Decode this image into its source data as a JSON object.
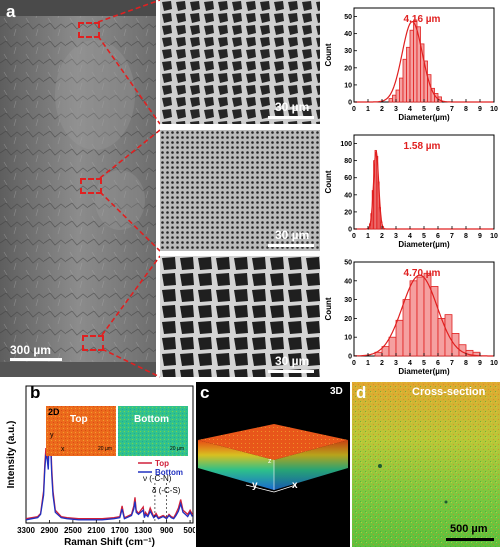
{
  "panels": {
    "a": {
      "letter": "a",
      "overview_scale": "300 µm",
      "zoom_scales": [
        "30 µm",
        "30 µm",
        "30 µm"
      ]
    },
    "b": {
      "letter": "b",
      "inset_2d_label": "2D",
      "inset_top_label": "Top",
      "inset_bottom_label": "Bottom",
      "inset_scale": "20 µm",
      "inset_axis_y": "y",
      "inset_axis_x": "x",
      "annotation_cn": "ν (-C-N)",
      "annotation_cs": "δ (-C-S)"
    },
    "c": {
      "letter": "c",
      "label_3d": "3D",
      "axis_y": "y",
      "axis_x": "x",
      "axis_z": "z"
    },
    "d": {
      "letter": "d",
      "title": "Cross-section",
      "scale": "500 µm"
    }
  },
  "chart_data": [
    {
      "type": "bar",
      "title": "4.16 µm",
      "xlabel": "Diameter(µm)",
      "ylabel": "Count",
      "xlim": [
        0,
        10
      ],
      "ylim": [
        0,
        55
      ],
      "x_ticks": [
        "0",
        "1",
        "2",
        "3",
        "4",
        "5",
        "6",
        "7",
        "8",
        "9",
        "10"
      ],
      "y_ticks": [
        "0",
        "10",
        "20",
        "30",
        "40",
        "50"
      ],
      "bin_width": 0.25,
      "bins": [
        2.5,
        2.75,
        3.0,
        3.25,
        3.5,
        3.75,
        4.0,
        4.25,
        4.5,
        4.75,
        5.0,
        5.25,
        5.5,
        5.75,
        6.0
      ],
      "values": [
        2,
        4,
        7,
        14,
        25,
        32,
        42,
        48,
        44,
        34,
        24,
        16,
        8,
        5,
        3
      ],
      "fit_mean": 4.16,
      "fit_sigma": 0.72,
      "fit_peak": 47,
      "color": "#e02020"
    },
    {
      "type": "bar",
      "title": "1.58 µm",
      "xlabel": "Diameter(µm)",
      "ylabel": "Count",
      "xlim": [
        0,
        10
      ],
      "ylim": [
        0,
        110
      ],
      "x_ticks": [
        "0",
        "1",
        "2",
        "3",
        "4",
        "5",
        "6",
        "7",
        "8",
        "9",
        "10"
      ],
      "y_ticks": [
        "0",
        "20",
        "40",
        "60",
        "80",
        "100"
      ],
      "bin_width": 0.1,
      "bins": [
        1.1,
        1.2,
        1.3,
        1.4,
        1.5,
        1.6,
        1.7,
        1.8,
        1.9,
        2.0
      ],
      "values": [
        6,
        18,
        45,
        80,
        92,
        85,
        55,
        25,
        8,
        3
      ],
      "fit_mean": 1.58,
      "fit_sigma": 0.18,
      "fit_peak": 91,
      "color": "#e02020"
    },
    {
      "type": "bar",
      "title": "4.70 µm",
      "xlabel": "Diameter(µm)",
      "ylabel": "Count",
      "xlim": [
        0,
        10
      ],
      "ylim": [
        0,
        50
      ],
      "x_ticks": [
        "0",
        "1",
        "2",
        "3",
        "4",
        "5",
        "6",
        "7",
        "8",
        "9",
        "10"
      ],
      "y_ticks": [
        "0",
        "10",
        "20",
        "30",
        "40",
        "50"
      ],
      "bin_width": 0.5,
      "bins": [
        1.5,
        2.0,
        2.5,
        3.0,
        3.5,
        4.0,
        4.5,
        5.0,
        5.5,
        6.0,
        6.5,
        7.0,
        7.5,
        8.0,
        8.5
      ],
      "values": [
        2,
        5,
        10,
        19,
        30,
        40,
        42,
        44,
        37,
        20,
        22,
        12,
        6,
        3,
        2
      ],
      "fit_mean": 4.7,
      "fit_sigma": 1.25,
      "fit_peak": 43,
      "color": "#e02020"
    },
    {
      "type": "line",
      "xlabel": "Raman Shift (cm⁻¹)",
      "ylabel": "Intensity (a.u.)",
      "xlim": [
        3300,
        450
      ],
      "x_ticks": [
        "3300",
        "2900",
        "2500",
        "2100",
        "1700",
        "1300",
        "900",
        "500"
      ],
      "series": [
        {
          "name": "Top",
          "color": "#d0203a",
          "x": [
            3300,
            3200,
            3100,
            3050,
            3000,
            2980,
            2960,
            2940,
            2920,
            2900,
            2880,
            2860,
            2840,
            2800,
            2700,
            2600,
            2400,
            2200,
            2000,
            1800,
            1700,
            1660,
            1640,
            1620,
            1580,
            1500,
            1460,
            1440,
            1420,
            1380,
            1300,
            1280,
            1260,
            1220,
            1180,
            1120,
            1080,
            1040,
            1000,
            960,
            900,
            860,
            820,
            780,
            740,
            700,
            660,
            620,
            580,
            540,
            500,
            460
          ],
          "y": [
            0.04,
            0.05,
            0.06,
            0.09,
            0.3,
            0.55,
            0.7,
            0.65,
            0.55,
            0.98,
            0.8,
            0.5,
            0.3,
            0.12,
            0.06,
            0.05,
            0.04,
            0.04,
            0.04,
            0.05,
            0.06,
            0.16,
            0.1,
            0.05,
            0.06,
            0.08,
            0.16,
            0.24,
            0.12,
            0.09,
            0.15,
            0.06,
            0.1,
            0.07,
            0.14,
            0.06,
            0.09,
            0.05,
            0.06,
            0.07,
            0.05,
            0.08,
            0.06,
            0.05,
            0.09,
            0.14,
            0.22,
            0.12,
            0.1,
            0.08,
            0.12,
            0.08
          ]
        },
        {
          "name": "Bottom",
          "color": "#2030c0",
          "x": [
            3300,
            3200,
            3100,
            3050,
            3000,
            2980,
            2960,
            2940,
            2920,
            2900,
            2880,
            2860,
            2840,
            2800,
            2700,
            2600,
            2400,
            2200,
            2000,
            1800,
            1700,
            1660,
            1640,
            1620,
            1580,
            1500,
            1460,
            1440,
            1420,
            1380,
            1300,
            1280,
            1260,
            1220,
            1180,
            1120,
            1080,
            1040,
            1000,
            960,
            900,
            860,
            820,
            780,
            740,
            700,
            660,
            620,
            580,
            540,
            500,
            460
          ],
          "y": [
            0.03,
            0.04,
            0.05,
            0.08,
            0.26,
            0.5,
            0.64,
            0.6,
            0.5,
            0.86,
            0.72,
            0.44,
            0.26,
            0.1,
            0.05,
            0.04,
            0.03,
            0.03,
            0.03,
            0.04,
            0.05,
            0.13,
            0.08,
            0.04,
            0.05,
            0.07,
            0.13,
            0.2,
            0.1,
            0.08,
            0.12,
            0.05,
            0.08,
            0.06,
            0.11,
            0.05,
            0.07,
            0.04,
            0.05,
            0.06,
            0.04,
            0.07,
            0.05,
            0.04,
            0.07,
            0.11,
            0.18,
            0.1,
            0.08,
            0.06,
            0.1,
            0.06
          ]
        }
      ],
      "legend": "right"
    }
  ]
}
